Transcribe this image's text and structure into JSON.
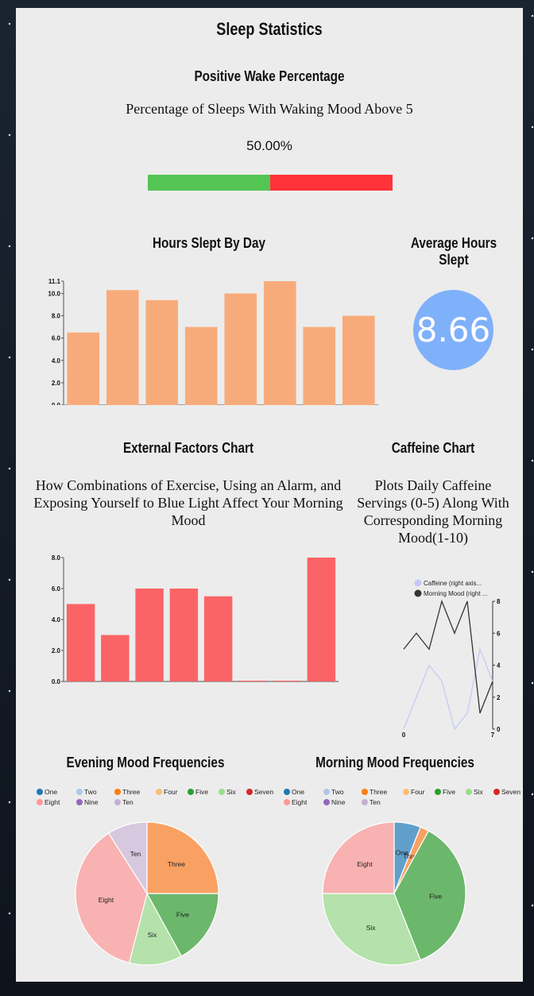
{
  "page": {
    "title": "Sleep Statistics"
  },
  "wake": {
    "title": "Positive Wake Percentage",
    "subtitle": "Percentage of Sleeps With Waking Mood Above 5",
    "percent_text": "50.00%",
    "positive_fraction": 0.5,
    "positive_color": "#52c553",
    "negative_color": "#ff3339"
  },
  "hours": {
    "title": "Hours Slept By Day"
  },
  "average": {
    "title": "Average Hours Slept",
    "value": "8.66",
    "color": "#7fb0fa"
  },
  "external": {
    "title": "External Factors Chart",
    "subtitle_lines": [
      "How Combinations of Exercise, Using an Alarm, and",
      "Exposing Yourself to Blue Light Affect Your Morning",
      "Mood"
    ]
  },
  "caffeine": {
    "title": "Caffeine Chart",
    "subtitle_lines": [
      "Plots Daily Caffeine",
      "Servings (0-5) Along With",
      "Corresponding Morning",
      "Mood(1-10)"
    ]
  },
  "evening": {
    "title": "Evening Mood Frequencies"
  },
  "morning": {
    "title": "Morning Mood Frequencies"
  },
  "chart_data": [
    {
      "id": "hours_slept",
      "type": "bar",
      "title": "Hours Slept By Day",
      "values": [
        6.5,
        10.3,
        9.4,
        7.0,
        10.0,
        11.1,
        7.0,
        8.0
      ],
      "ylim": [
        0,
        11.1
      ],
      "yticks": [
        "0.0",
        "2.0",
        "4.0",
        "6.0",
        "8.0",
        "10.0",
        "11.1"
      ],
      "color": "#f8ab7a"
    },
    {
      "id": "external_factors",
      "type": "bar",
      "title": "External Factors Chart",
      "values": [
        5.0,
        3.0,
        6.0,
        6.0,
        5.5,
        0,
        0,
        8.0
      ],
      "ylim": [
        0,
        8.0
      ],
      "yticks": [
        "0.0",
        "2.0",
        "4.0",
        "6.0",
        "8.0"
      ],
      "color": "#fb6466"
    },
    {
      "id": "caffeine",
      "type": "line",
      "title": "Caffeine Chart",
      "x": [
        0,
        1,
        2,
        3,
        4,
        5,
        6,
        7
      ],
      "xticks": [
        "0",
        "7"
      ],
      "ylim": [
        0,
        8
      ],
      "yticks": [
        "0",
        "2",
        "4",
        "6",
        "8"
      ],
      "series": [
        {
          "name": "Caffeine (right axis...",
          "values": [
            0,
            2,
            4,
            3,
            0,
            1,
            5,
            3
          ],
          "color": "#c6c9f6"
        },
        {
          "name": "Morning Mood (right ...",
          "values": [
            5,
            6,
            5,
            8,
            6,
            8,
            1,
            3
          ],
          "color": "#333333"
        }
      ]
    },
    {
      "id": "evening_mood",
      "type": "pie",
      "title": "Evening Mood Frequencies",
      "legend": [
        "One",
        "Two",
        "Three",
        "Four",
        "Five",
        "Six",
        "Seven",
        "Eight",
        "Nine",
        "Ten"
      ],
      "legend_colors": [
        "#1f77b4",
        "#aec7e8",
        "#ff7f0e",
        "#ffbb78",
        "#2ca02c",
        "#98df8a",
        "#d62728",
        "#ff9896",
        "#9467bd",
        "#c5b0d5"
      ],
      "slices": [
        {
          "label": "Three",
          "value": 25,
          "color": "#f9a163"
        },
        {
          "label": "Five",
          "value": 17,
          "color": "#6bb76b"
        },
        {
          "label": "Six",
          "value": 12,
          "color": "#b4e2aa"
        },
        {
          "label": "Eight",
          "value": 37,
          "color": "#f8b2b1"
        },
        {
          "label": "Ten",
          "value": 9,
          "color": "#d6c8de"
        }
      ]
    },
    {
      "id": "morning_mood",
      "type": "pie",
      "title": "Morning Mood Frequencies",
      "legend": [
        "One",
        "Two",
        "Three",
        "Four",
        "Five",
        "Six",
        "Seven",
        "Eight",
        "Nine",
        "Ten"
      ],
      "legend_colors": [
        "#1f77b4",
        "#aec7e8",
        "#ff7f0e",
        "#ffbb78",
        "#2ca02c",
        "#98df8a",
        "#d62728",
        "#ff9896",
        "#9467bd",
        "#c5b0d5"
      ],
      "slices": [
        {
          "label": "One",
          "value": 6,
          "color": "#619fcb"
        },
        {
          "label": "Three",
          "value": 2,
          "color": "#f9a163"
        },
        {
          "label": "Five",
          "value": 36,
          "color": "#6bb76b"
        },
        {
          "label": "Six",
          "value": 31,
          "color": "#b4e2aa"
        },
        {
          "label": "Eight",
          "value": 25,
          "color": "#f8b2b1"
        }
      ]
    }
  ]
}
